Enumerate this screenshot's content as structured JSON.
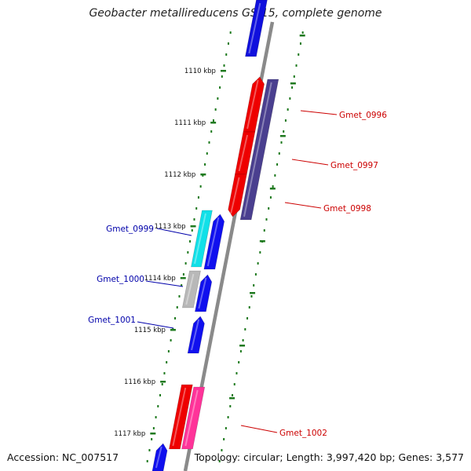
{
  "title": "Geobacter metallireducens GS-15, complete genome",
  "footer": {
    "accession": "Accession: NC_007517",
    "summary": "Topology: circular; Length: 3,997,420 bp; Genes: 3,577"
  },
  "colors": {
    "backbone": "#8a8a8a",
    "tick": "#1f7a1f",
    "label_right": "#cc0000",
    "label_left": "#0000aa"
  },
  "scale_ticks": [
    "1110 kbp",
    "1111 kbp",
    "1112 kbp",
    "1113 kbp",
    "1114 kbp",
    "1115 kbp",
    "1116 kbp",
    "1117 kbp"
  ],
  "gene_labels": [
    {
      "name": "Gmet_0996",
      "side": "right"
    },
    {
      "name": "Gmet_0997",
      "side": "right"
    },
    {
      "name": "Gmet_0998",
      "side": "right"
    },
    {
      "name": "Gmet_0999",
      "side": "left"
    },
    {
      "name": "Gmet_1000",
      "side": "left"
    },
    {
      "name": "Gmet_1001",
      "side": "left"
    },
    {
      "name": "Gmet_1002",
      "side": "right"
    }
  ]
}
